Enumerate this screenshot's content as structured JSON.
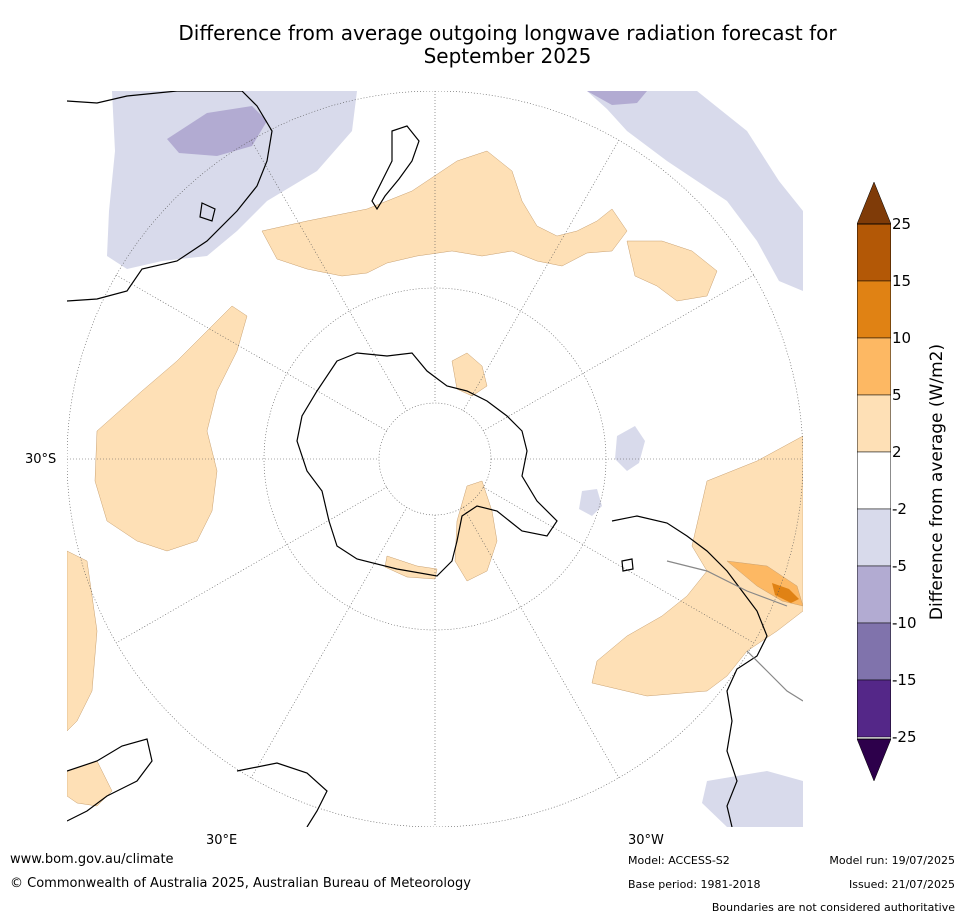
{
  "title": {
    "line1": "Difference from average outgoing longwave radiation forecast for",
    "line2": "September 2025"
  },
  "axis_labels": {
    "latitude": "30°S",
    "lon_east": "30°E",
    "lon_west": "30°W"
  },
  "colorbar": {
    "label": "Difference from average (W/m2)",
    "ticks": [
      "25",
      "15",
      "10",
      "5",
      "2",
      "-2",
      "-5",
      "-10",
      "-15",
      "-25"
    ],
    "colors": {
      "over_25": "#7f3b08",
      "15_25": "#b35806",
      "10_15": "#e08214",
      "5_10": "#fdb863",
      "2_5": "#fee0b6",
      "neg2_2": "#ffffff",
      "neg5_neg2": "#d8daeb",
      "neg10_neg5": "#b2abd2",
      "neg15_neg10": "#8073ac",
      "neg25_neg15": "#542788",
      "under_neg25": "#2d004b"
    }
  },
  "footer": {
    "url": "www.bom.gov.au/climate",
    "copyright": "© Commonwealth of Australia 2025, Australian Bureau of Meteorology"
  },
  "meta": {
    "model": "Model: ACCESS-S2",
    "base_period": "Base period: 1981-2018",
    "model_run": "Model run: 19/07/2025",
    "issued": "Issued: 21/07/2025",
    "disclaimer": "Boundaries are not considered authoritative"
  }
}
